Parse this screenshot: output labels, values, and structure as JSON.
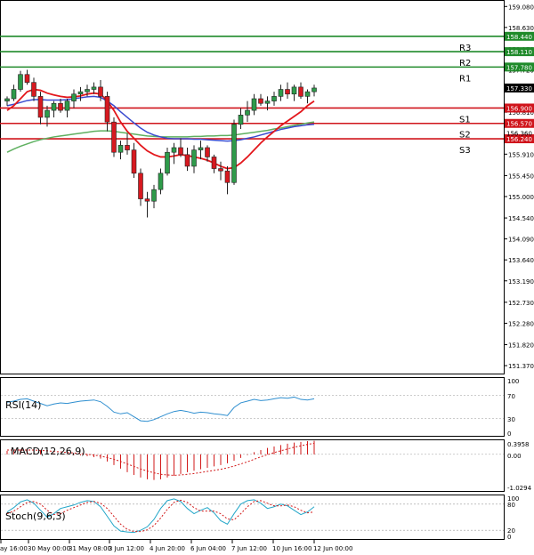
{
  "chart_data": {
    "type": "candlestick",
    "colors": {
      "bull": "#2e9b4a",
      "bear": "#d71920",
      "ma_fast": "#e3171c",
      "ma_mid": "#3a4bd0",
      "ma_slow": "#5fb060",
      "resistance": "#1f8a2a",
      "support": "#d0141b",
      "rsi": "#2f8fd0",
      "macd_hist": "#d21a1a",
      "macd_signal": "#d21a1a",
      "stoch_main": "#22a6c8",
      "stoch_signal": "#d21a1a",
      "grid": "#9a9a9a"
    },
    "y_ticks": [
      "159.080",
      "158.630",
      "158.170",
      "157.720",
      "156.810",
      "155.910",
      "155.450",
      "155.000",
      "154.540",
      "154.090",
      "153.640",
      "153.190",
      "152.730",
      "152.280",
      "151.820",
      "151.370"
    ],
    "ylim": [
      151.2,
      159.2
    ],
    "levels": [
      {
        "name": "R3",
        "value": 158.44,
        "label": "158.440",
        "kind": "resistance"
      },
      {
        "name": "R2",
        "value": 158.11,
        "label": "158.110",
        "kind": "resistance"
      },
      {
        "name": "R1",
        "value": 157.78,
        "label": "157.780",
        "kind": "resistance"
      },
      {
        "name": "S1",
        "value": 156.9,
        "label": "156.900",
        "kind": "support"
      },
      {
        "name": "S2",
        "value": 156.57,
        "label": "156.570",
        "kind": "support"
      },
      {
        "name": "S3",
        "value": 156.24,
        "label": "156.240",
        "kind": "support"
      }
    ],
    "extra_price_labels": [
      "156.360"
    ],
    "current_price": {
      "value": 157.33,
      "label": "157.330"
    },
    "x_labels": [
      "ay 16:00",
      "30 May 00:00",
      "31 May 08:00",
      "3 Jun 12:00",
      "4 Jun 20:00",
      "6 Jun 04:00",
      "7 Jun 12:00",
      "10 Jun 16:00",
      "12 Jun 00:00"
    ],
    "candles": [
      [
        157.05,
        157.15,
        156.95,
        157.1
      ],
      [
        157.1,
        157.4,
        157.05,
        157.3
      ],
      [
        157.3,
        157.7,
        157.25,
        157.62
      ],
      [
        157.62,
        157.72,
        157.4,
        157.45
      ],
      [
        157.45,
        157.55,
        157.05,
        157.15
      ],
      [
        157.15,
        157.25,
        156.55,
        156.7
      ],
      [
        156.7,
        156.95,
        156.5,
        156.85
      ],
      [
        156.85,
        157.05,
        156.7,
        157.0
      ],
      [
        157.0,
        157.1,
        156.8,
        156.85
      ],
      [
        156.85,
        157.1,
        156.7,
        157.05
      ],
      [
        157.05,
        157.3,
        156.9,
        157.2
      ],
      [
        157.2,
        157.35,
        157.05,
        157.25
      ],
      [
        157.25,
        157.4,
        157.15,
        157.3
      ],
      [
        157.3,
        157.45,
        157.2,
        157.35
      ],
      [
        157.35,
        157.5,
        157.05,
        157.15
      ],
      [
        157.15,
        157.25,
        156.4,
        156.6
      ],
      [
        156.6,
        156.7,
        155.85,
        155.95
      ],
      [
        155.95,
        156.2,
        155.8,
        156.1
      ],
      [
        156.1,
        156.35,
        155.9,
        156.0
      ],
      [
        156.0,
        156.15,
        155.4,
        155.5
      ],
      [
        155.5,
        155.6,
        154.8,
        154.95
      ],
      [
        154.95,
        155.1,
        154.55,
        154.9
      ],
      [
        154.9,
        155.25,
        154.75,
        155.15
      ],
      [
        155.15,
        155.6,
        155.05,
        155.5
      ],
      [
        155.5,
        156.05,
        155.45,
        155.95
      ],
      [
        155.95,
        156.15,
        155.7,
        156.05
      ],
      [
        156.05,
        156.25,
        155.85,
        155.9
      ],
      [
        155.9,
        156.05,
        155.55,
        155.65
      ],
      [
        155.65,
        156.1,
        155.5,
        156.0
      ],
      [
        156.0,
        156.2,
        155.8,
        156.05
      ],
      [
        156.05,
        156.1,
        155.75,
        155.85
      ],
      [
        155.85,
        155.9,
        155.5,
        155.6
      ],
      [
        155.6,
        155.75,
        155.35,
        155.55
      ],
      [
        155.55,
        155.65,
        155.05,
        155.3
      ],
      [
        155.3,
        156.65,
        155.25,
        156.55
      ],
      [
        156.55,
        156.9,
        156.45,
        156.75
      ],
      [
        156.75,
        157.05,
        156.6,
        156.85
      ],
      [
        156.85,
        157.2,
        156.75,
        157.1
      ],
      [
        157.1,
        157.2,
        156.95,
        157.0
      ],
      [
        157.0,
        157.15,
        156.85,
        157.05
      ],
      [
        157.05,
        157.25,
        156.95,
        157.15
      ],
      [
        157.15,
        157.4,
        157.05,
        157.3
      ],
      [
        157.3,
        157.45,
        157.1,
        157.2
      ],
      [
        157.2,
        157.4,
        157.05,
        157.35
      ],
      [
        157.35,
        157.45,
        157.1,
        157.15
      ],
      [
        157.15,
        157.3,
        157.0,
        157.25
      ],
      [
        157.25,
        157.4,
        157.15,
        157.33
      ]
    ],
    "ma_fast": [
      156.85,
      156.95,
      157.1,
      157.25,
      157.3,
      157.28,
      157.22,
      157.18,
      157.15,
      157.13,
      157.14,
      157.16,
      157.2,
      157.22,
      157.2,
      157.05,
      156.85,
      156.6,
      156.4,
      156.25,
      156.1,
      155.98,
      155.9,
      155.85,
      155.85,
      155.87,
      155.9,
      155.88,
      155.85,
      155.82,
      155.78,
      155.72,
      155.65,
      155.6,
      155.62,
      155.72,
      155.85,
      156.0,
      156.15,
      156.28,
      156.4,
      156.52,
      156.62,
      156.72,
      156.82,
      156.95,
      157.05
    ],
    "ma_mid": [
      156.95,
      156.98,
      157.02,
      157.06,
      157.08,
      157.08,
      157.07,
      157.07,
      157.07,
      157.08,
      157.1,
      157.12,
      157.14,
      157.15,
      157.13,
      157.05,
      156.95,
      156.82,
      156.7,
      156.58,
      156.47,
      156.38,
      156.32,
      156.28,
      156.25,
      156.24,
      156.24,
      156.24,
      156.23,
      156.23,
      156.22,
      156.21,
      156.2,
      156.19,
      156.2,
      156.22,
      156.25,
      156.28,
      156.32,
      156.36,
      156.4,
      156.44,
      156.47,
      156.5,
      156.52,
      156.54,
      156.55
    ],
    "ma_slow": [
      155.95,
      156.02,
      156.08,
      156.13,
      156.18,
      156.22,
      156.25,
      156.28,
      156.3,
      156.32,
      156.34,
      156.36,
      156.38,
      156.4,
      156.41,
      156.41,
      156.4,
      156.38,
      156.36,
      156.34,
      156.32,
      156.3,
      156.29,
      156.28,
      156.28,
      156.28,
      156.28,
      156.28,
      156.29,
      156.29,
      156.3,
      156.3,
      156.31,
      156.31,
      156.32,
      156.34,
      156.36,
      156.38,
      156.4,
      156.42,
      156.45,
      156.47,
      156.5,
      156.53,
      156.55,
      156.58,
      156.6
    ],
    "rsi": {
      "label": "RSI(14)",
      "ticks": [
        "100",
        "70",
        "30",
        "0"
      ],
      "values": [
        58,
        60,
        63,
        64,
        60,
        56,
        52,
        55,
        57,
        56,
        58,
        60,
        61,
        62,
        59,
        51,
        41,
        38,
        40,
        33,
        26,
        25,
        28,
        33,
        38,
        42,
        44,
        42,
        39,
        41,
        40,
        38,
        37,
        35,
        49,
        57,
        60,
        63,
        61,
        62,
        64,
        66,
        65,
        67,
        63,
        62,
        64
      ]
    },
    "macd": {
      "label": "MACD(12,26,9)",
      "ticks": [
        "0.3958",
        "0.00",
        "-1.0294"
      ],
      "hist": [
        0.1,
        0.12,
        0.14,
        0.15,
        0.14,
        0.1,
        0.06,
        0.03,
        0.01,
        -0.01,
        -0.02,
        -0.03,
        -0.05,
        -0.08,
        -0.12,
        -0.2,
        -0.3,
        -0.4,
        -0.5,
        -0.58,
        -0.65,
        -0.7,
        -0.72,
        -0.7,
        -0.65,
        -0.6,
        -0.55,
        -0.5,
        -0.46,
        -0.42,
        -0.38,
        -0.34,
        -0.3,
        -0.25,
        -0.18,
        -0.1,
        -0.02,
        0.06,
        0.12,
        0.18,
        0.22,
        0.26,
        0.3,
        0.33,
        0.35,
        0.37,
        0.38
      ],
      "signal": [
        0.12,
        0.12,
        0.12,
        0.12,
        0.12,
        0.11,
        0.1,
        0.08,
        0.07,
        0.05,
        0.04,
        0.02,
        0.0,
        -0.02,
        -0.05,
        -0.09,
        -0.14,
        -0.2,
        -0.27,
        -0.34,
        -0.41,
        -0.47,
        -0.52,
        -0.56,
        -0.58,
        -0.59,
        -0.58,
        -0.56,
        -0.54,
        -0.51,
        -0.48,
        -0.45,
        -0.42,
        -0.38,
        -0.33,
        -0.27,
        -0.21,
        -0.14,
        -0.07,
        -0.01,
        0.05,
        0.1,
        0.15,
        0.2,
        0.24,
        0.28,
        0.31
      ]
    },
    "stoch": {
      "label": "Stoch(9,6,3)",
      "ticks": [
        "100",
        "80",
        "20",
        "0"
      ],
      "main": [
        62,
        72,
        85,
        90,
        82,
        66,
        50,
        58,
        70,
        74,
        78,
        84,
        88,
        86,
        74,
        52,
        30,
        18,
        16,
        15,
        20,
        28,
        45,
        70,
        88,
        92,
        86,
        70,
        58,
        66,
        72,
        60,
        42,
        34,
        58,
        80,
        88,
        90,
        82,
        70,
        74,
        80,
        76,
        66,
        56,
        62,
        74
      ],
      "signal": [
        58,
        64,
        74,
        84,
        86,
        80,
        66,
        56,
        58,
        66,
        72,
        78,
        84,
        86,
        82,
        70,
        52,
        34,
        22,
        17,
        17,
        21,
        31,
        48,
        68,
        84,
        89,
        84,
        72,
        64,
        64,
        64,
        58,
        46,
        44,
        58,
        74,
        86,
        88,
        82,
        76,
        76,
        78,
        74,
        66,
        60,
        62
      ]
    }
  }
}
